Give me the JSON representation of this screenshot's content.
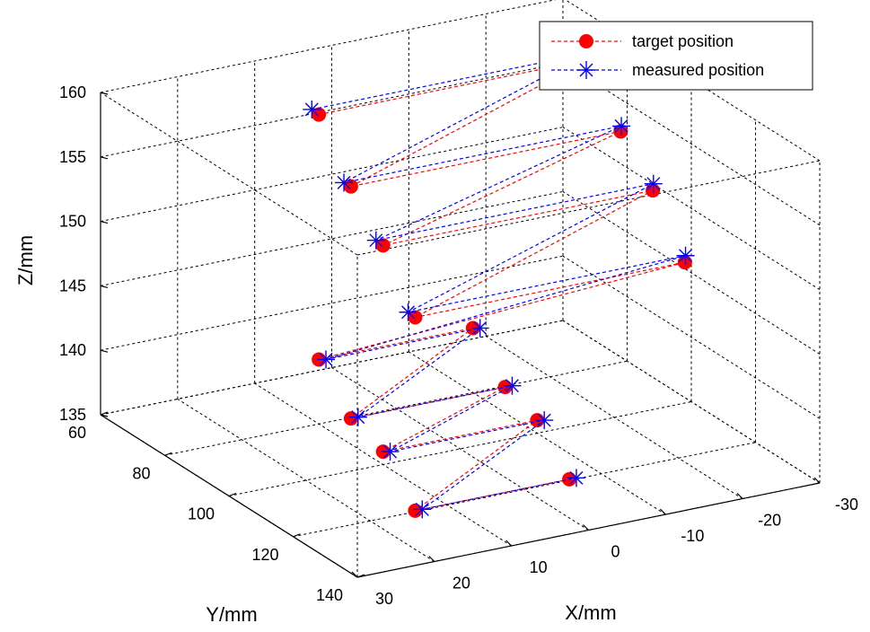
{
  "chart_data": {
    "type": "scatter",
    "projection": "3d",
    "xlabel": "X/mm",
    "ylabel": "Y/mm",
    "zlabel": "Z/mm",
    "xlim": [
      -30,
      30
    ],
    "ylim": [
      60,
      140
    ],
    "zlim": [
      135,
      160
    ],
    "xticks": [
      30,
      20,
      10,
      0,
      -10,
      -20,
      -30
    ],
    "yticks": [
      60,
      80,
      100,
      120,
      140
    ],
    "zticks": [
      135,
      140,
      145,
      150,
      155,
      160
    ],
    "grid": true,
    "legend_position": "top-right",
    "series": [
      {
        "name": "target position",
        "color": "#ff0000",
        "marker": "circle",
        "line": "dashed",
        "points": [
          {
            "x": 10,
            "y": 80,
            "z": 159
          },
          {
            "x": -25,
            "y": 80,
            "z": 159
          },
          {
            "x": 10,
            "y": 90,
            "z": 155
          },
          {
            "x": -25,
            "y": 90,
            "z": 155
          },
          {
            "x": 10,
            "y": 100,
            "z": 152
          },
          {
            "x": -25,
            "y": 100,
            "z": 152
          },
          {
            "x": 10,
            "y": 110,
            "z": 148
          },
          {
            "x": -25,
            "y": 110,
            "z": 148
          },
          {
            "x": 10,
            "y": 80,
            "z": 140
          },
          {
            "x": -10,
            "y": 80,
            "z": 140
          },
          {
            "x": 10,
            "y": 90,
            "z": 137
          },
          {
            "x": -10,
            "y": 90,
            "z": 137
          },
          {
            "x": 10,
            "y": 100,
            "z": 136
          },
          {
            "x": -10,
            "y": 100,
            "z": 136
          },
          {
            "x": 10,
            "y": 110,
            "z": 133
          },
          {
            "x": -10,
            "y": 110,
            "z": 133
          }
        ]
      },
      {
        "name": "measured position",
        "color": "#0000ff",
        "marker": "asterisk",
        "line": "dashed",
        "points": [
          {
            "x": 10.5,
            "y": 79,
            "z": 159.3
          },
          {
            "x": -25.5,
            "y": 79,
            "z": 159.3
          },
          {
            "x": 10.5,
            "y": 89,
            "z": 155.2
          },
          {
            "x": -25.5,
            "y": 89,
            "z": 155.2
          },
          {
            "x": 10.5,
            "y": 99,
            "z": 152.3
          },
          {
            "x": -25.5,
            "y": 99,
            "z": 152.3
          },
          {
            "x": 10.5,
            "y": 109,
            "z": 148.3
          },
          {
            "x": -25.5,
            "y": 109,
            "z": 148.3
          },
          {
            "x": 9.5,
            "y": 81,
            "z": 140.1
          },
          {
            "x": -10.5,
            "y": 81,
            "z": 140.1
          },
          {
            "x": 9.5,
            "y": 91,
            "z": 137.2
          },
          {
            "x": -10.5,
            "y": 91,
            "z": 137.2
          },
          {
            "x": 9.5,
            "y": 101,
            "z": 136.1
          },
          {
            "x": -10.5,
            "y": 101,
            "z": 136.1
          },
          {
            "x": 9.5,
            "y": 111,
            "z": 133.2
          },
          {
            "x": -10.5,
            "y": 111,
            "z": 133.2
          }
        ]
      }
    ]
  }
}
